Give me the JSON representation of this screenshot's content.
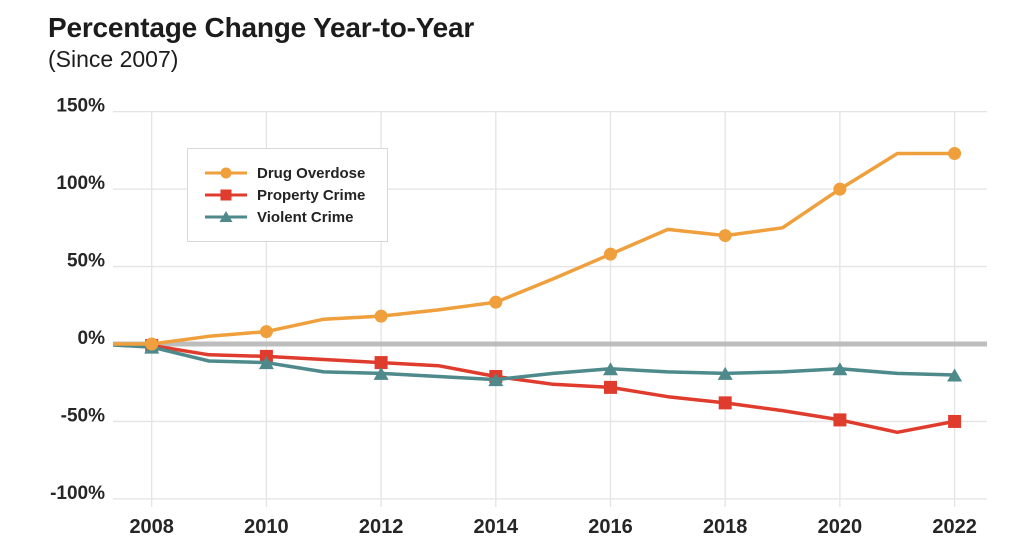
{
  "header": {
    "title": "Percentage Change Year-to-Year",
    "subtitle": "(Since 2007)"
  },
  "chart_data": {
    "type": "line",
    "title": "Percentage Change Year-to-Year",
    "subtitle": "(Since 2007)",
    "xlabel": "",
    "ylabel": "",
    "x": [
      2007,
      2008,
      2009,
      2010,
      2011,
      2012,
      2013,
      2014,
      2015,
      2016,
      2017,
      2018,
      2019,
      2020,
      2021,
      2022
    ],
    "series": [
      {
        "name": "Drug Overdose",
        "color": "#EF9F3B",
        "marker": "circle",
        "z": 3,
        "values": [
          0,
          0,
          5,
          8,
          16,
          18,
          22,
          27,
          42,
          58,
          74,
          70,
          75,
          100,
          123,
          123
        ]
      },
      {
        "name": "Property Crime",
        "color": "#DF3C2D",
        "marker": "square",
        "z": 1,
        "values": [
          0,
          -1,
          -7,
          -8,
          -10,
          -12,
          -14,
          -21,
          -26,
          -28,
          -34,
          -38,
          -43,
          -49,
          -57,
          -50
        ]
      },
      {
        "name": "Violent Crime",
        "color": "#4E8A8C",
        "marker": "triangle",
        "z": 2,
        "values": [
          0,
          -2,
          -11,
          -12,
          -18,
          -19,
          -21,
          -23,
          -19,
          -16,
          -18,
          -19,
          -18,
          -16,
          -19,
          -20
        ]
      }
    ],
    "marker_years": [
      2008,
      2010,
      2012,
      2014,
      2016,
      2018,
      2020,
      2022
    ],
    "x_ticks": [
      {
        "value": 2008,
        "label": "2008"
      },
      {
        "value": 2010,
        "label": "2010"
      },
      {
        "value": 2012,
        "label": "2012"
      },
      {
        "value": 2014,
        "label": "2014"
      },
      {
        "value": 2016,
        "label": "2016"
      },
      {
        "value": 2018,
        "label": "2018"
      },
      {
        "value": 2020,
        "label": "2020"
      },
      {
        "value": 2022,
        "label": "2022"
      }
    ],
    "y_ticks": [
      {
        "value": 150,
        "label": "150%"
      },
      {
        "value": 100,
        "label": "100%"
      },
      {
        "value": 50,
        "label": "50%"
      },
      {
        "value": 0,
        "label": "0%"
      },
      {
        "value": -50,
        "label": "-50%"
      },
      {
        "value": -100,
        "label": "-100%"
      }
    ],
    "ylim": [
      -100,
      150
    ],
    "grid": true,
    "zero_line": true,
    "legend_position": "upper-left-inside",
    "colors": {
      "zero_line": "#BDBDBD",
      "grid": "#E4E4E4",
      "tick_text": "#262626",
      "background": "#FFFFFF"
    }
  }
}
